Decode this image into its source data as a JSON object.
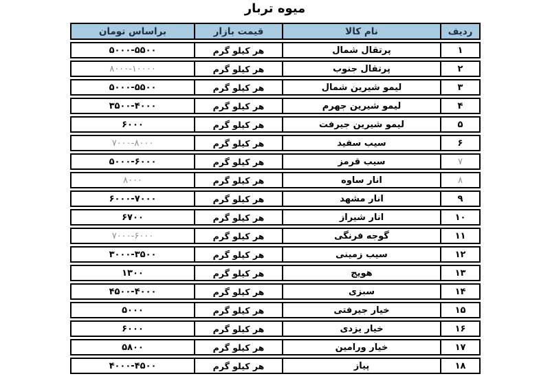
{
  "title": "میوه تربار",
  "colors": {
    "header_bg": "#a9cbe2",
    "header_text": "#1e2c46",
    "border": "#000000",
    "body_text": "#000000",
    "muted_text": "#8f8f8f",
    "background": "#ffffff"
  },
  "table": {
    "direction": "rtl",
    "headers": {
      "row": "ردیف",
      "name": "نام کالا",
      "unit": "قیمت بازار",
      "price": "براساس تومان"
    },
    "rows": [
      {
        "num": "۱",
        "name": "پرتقال شمال",
        "unit": "هر کیلو گرم",
        "price": "۵۰۰۰-۵۵۰۰",
        "price_muted": false,
        "num_muted": false
      },
      {
        "num": "۲",
        "name": "پرتقال جنوب",
        "unit": "هر کیلو گرم",
        "price": "۸۰۰۰-۱۰۰۰۰",
        "price_muted": true,
        "num_muted": false
      },
      {
        "num": "۳",
        "name": "لیمو شیرین شمال",
        "unit": "هر کیلو گرم",
        "price": "۵۰۰۰-۵۵۰۰",
        "price_muted": false,
        "num_muted": false
      },
      {
        "num": "۴",
        "name": "لیمو شیرین جهرم",
        "unit": "هر کیلو گرم",
        "price": "۳۵۰۰-۴۰۰۰",
        "price_muted": false,
        "num_muted": false
      },
      {
        "num": "۵",
        "name": "لیمو شیرین جیرفت",
        "unit": "هر کیلو گرم",
        "price": "۶۰۰۰",
        "price_muted": false,
        "num_muted": false
      },
      {
        "num": "۶",
        "name": "سیب سفید",
        "unit": "هر کیلو گرم",
        "price": "۷۰۰۰-۸۰۰۰",
        "price_muted": true,
        "num_muted": false
      },
      {
        "num": "۷",
        "name": "سیب قرمز",
        "unit": "هر کیلو گرم",
        "price": "۵۰۰۰-۶۰۰۰",
        "price_muted": false,
        "num_muted": true
      },
      {
        "num": "۸",
        "name": "انار ساوه",
        "unit": "هر کیلو گرم",
        "price": "۸۰۰۰",
        "price_muted": true,
        "num_muted": true
      },
      {
        "num": "۹",
        "name": "انار مشهد",
        "unit": "هر کیلو گرم",
        "price": "۶۰۰۰-۷۰۰۰",
        "price_muted": false,
        "num_muted": false
      },
      {
        "num": "۱۰",
        "name": "انار شیراز",
        "unit": "هر کیلو گرم",
        "price": "۶۷۰۰",
        "price_muted": false,
        "num_muted": false
      },
      {
        "num": "۱۱",
        "name": "گوجه فرنگی",
        "unit": "هر کیلو گرم",
        "price": "۷۰۰۰-۶۰۰۰",
        "price_muted": true,
        "num_muted": false
      },
      {
        "num": "۱۲",
        "name": "سیب زمینی",
        "unit": "هر کیلو گرم",
        "price": "۳۰۰۰-۳۵۰۰",
        "price_muted": false,
        "num_muted": false
      },
      {
        "num": "۱۳",
        "name": "هویج",
        "unit": "هر کیلو گرم",
        "price": "۱۳۰۰",
        "price_muted": false,
        "num_muted": false
      },
      {
        "num": "۱۴",
        "name": "سبزی",
        "unit": "هر کیلو گرم",
        "price": "۴۵۰۰-۴۰۰۰",
        "price_muted": false,
        "num_muted": false
      },
      {
        "num": "۱۵",
        "name": "خیار جیرفتی",
        "unit": "هر کیلو گرم",
        "price": "۵۰۰۰",
        "price_muted": false,
        "num_muted": false
      },
      {
        "num": "۱۶",
        "name": "خیار یزدی",
        "unit": "هر کیلو گرم",
        "price": "۶۰۰۰",
        "price_muted": false,
        "num_muted": false
      },
      {
        "num": "۱۷",
        "name": "خیار ورامین",
        "unit": "هر کیلو گرم",
        "price": "۵۸۰۰",
        "price_muted": false,
        "num_muted": false
      },
      {
        "num": "۱۸",
        "name": "پیاز",
        "unit": "هر کیلو گرم",
        "price": "۴۰۰۰-۴۵۰۰",
        "price_muted": false,
        "num_muted": false
      }
    ]
  }
}
